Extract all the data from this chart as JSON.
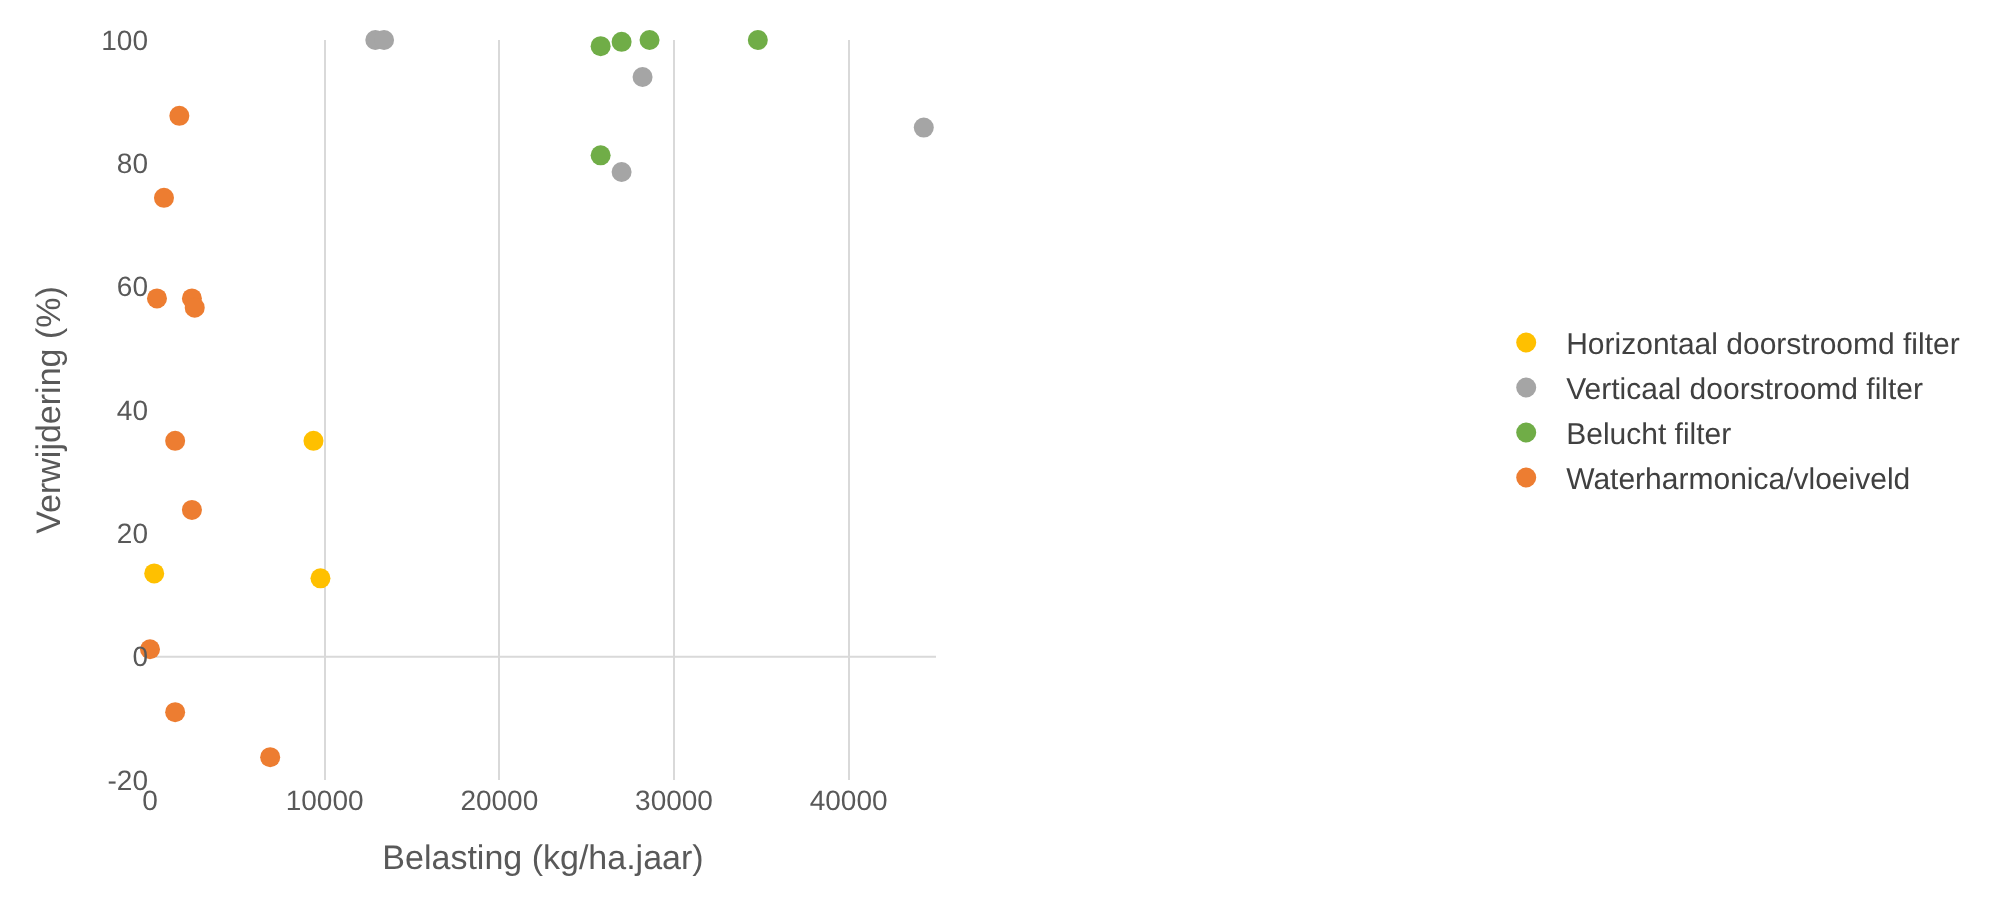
{
  "chart_data": {
    "type": "scatter",
    "xlabel": "Belasting (kg/ha.jaar)",
    "ylabel": "Verwijdering (%)",
    "xlim": [
      0,
      45000
    ],
    "xticks": [
      0,
      10000,
      20000,
      30000,
      40000
    ],
    "ylim": [
      -20,
      100
    ],
    "yticks": [
      -20,
      0,
      20,
      40,
      60,
      80,
      100
    ],
    "grid": "x",
    "ref_lines": [
      {
        "axis": "y",
        "value": 0,
        "color": "#d9d9d9"
      }
    ],
    "legend": "right",
    "marker": "circle",
    "series": [
      {
        "name": "Horizontaal doorstroomd filter",
        "color": "#ffc000",
        "x": [
          240,
          9360,
          9760
        ],
        "values": [
          13.5,
          35,
          12.7
        ]
      },
      {
        "name": "Verticaal doorstroomd filter",
        "color": "#a5a5a5",
        "x": [
          12900,
          13400,
          28200,
          27000,
          44300
        ],
        "values": [
          100,
          100,
          94,
          78.6,
          85.8
        ]
      },
      {
        "name": "Belucht filter",
        "color": "#70ad47",
        "x": [
          25800,
          27000,
          28600,
          34800,
          25800
        ],
        "values": [
          99,
          99.7,
          100,
          100,
          81.3
        ]
      },
      {
        "name": "Waterharmonica/vloeiveld",
        "color": "#ed7d31",
        "x": [
          0,
          1680,
          800,
          400,
          2400,
          2560,
          1440,
          2400,
          1440,
          6880
        ],
        "values": [
          1.2,
          87.7,
          74.4,
          58.1,
          58.1,
          56.6,
          35,
          23.8,
          -9,
          -16.3
        ]
      }
    ]
  }
}
